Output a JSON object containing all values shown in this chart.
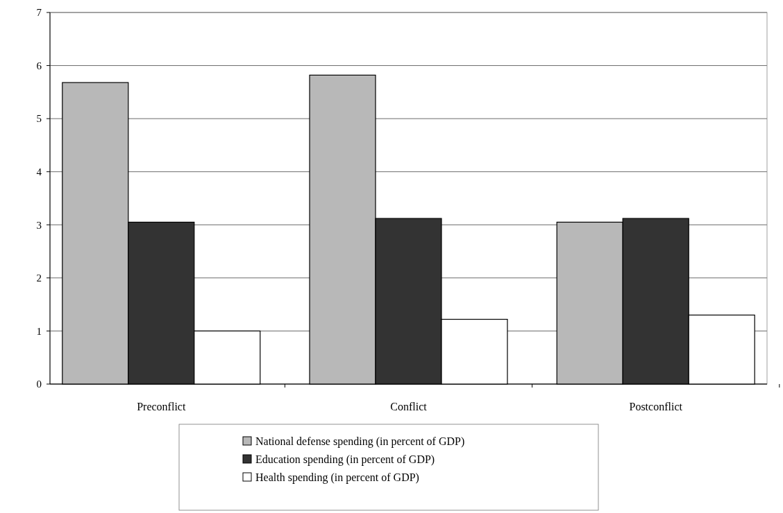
{
  "chart_data": {
    "type": "bar",
    "categories": [
      "Preconflict",
      "Conflict",
      "Postconflict"
    ],
    "series": [
      {
        "name": "National defense spending (in percent of GDP)",
        "color": "#b8b8b8",
        "values": [
          5.68,
          5.82,
          3.05
        ]
      },
      {
        "name": "Education spending (in percent of GDP)",
        "color": "#333333",
        "values": [
          3.05,
          3.12,
          3.12
        ]
      },
      {
        "name": "Health spending (in percent  of GDP)",
        "color": "#ffffff",
        "values": [
          1.0,
          1.22,
          1.3
        ]
      }
    ],
    "ylim": [
      0,
      7
    ],
    "yticks": [
      0,
      1,
      2,
      3,
      4,
      5,
      6,
      7
    ],
    "grid": "y",
    "legend": "bottom"
  }
}
